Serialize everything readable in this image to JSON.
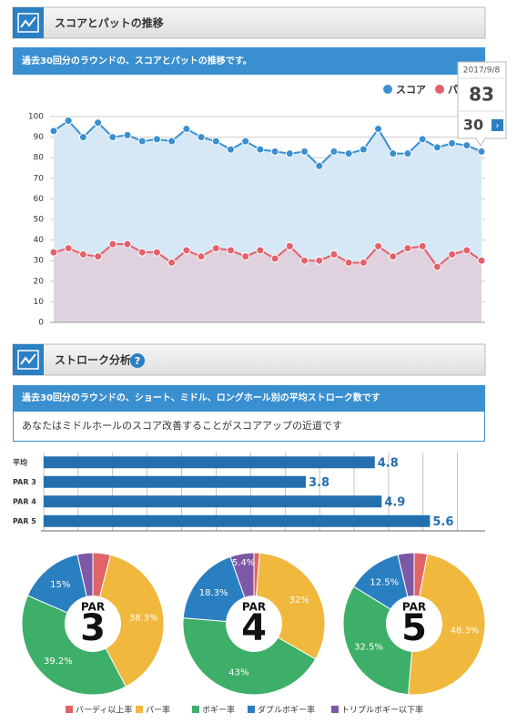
{
  "sections": [
    {
      "title": "スコアとパットの推移",
      "description": "過去30回分のラウンドの、スコアとパットの推移です。"
    },
    {
      "title": "ストローク分析",
      "description": "過去30回分のラウンドの、ショート、ミドル、ロングホール別の平均ストローク数です",
      "message": "あなたはミドルホールのスコア改善することがスコアアップの近道です"
    }
  ],
  "chart_data": [
    {
      "type": "line",
      "ylim": [
        0,
        100
      ],
      "yticks": [
        0,
        10,
        20,
        30,
        40,
        50,
        60,
        70,
        80,
        90,
        100
      ],
      "grid": true,
      "legend": "top-right",
      "series": [
        {
          "name": "スコア",
          "color": "#3a8fd0",
          "fill": "#d6e8f6",
          "values": [
            93,
            98,
            90,
            97,
            90,
            91,
            88,
            89,
            88,
            94,
            90,
            88,
            84,
            88,
            84,
            83,
            82,
            83,
            76,
            83,
            82,
            84,
            94,
            82,
            82,
            89,
            85,
            87,
            86,
            83
          ]
        },
        {
          "name": "パット",
          "color": "#e5606a",
          "fill": "#dfd2de",
          "values": [
            34,
            36,
            33,
            32,
            38,
            38,
            34,
            34,
            29,
            35,
            32,
            36,
            35,
            32,
            35,
            31,
            37,
            30,
            30,
            33,
            29,
            29,
            37,
            32,
            36,
            37,
            27,
            33,
            35,
            30
          ]
        }
      ],
      "tooltip": {
        "date": "2017/9/8",
        "values": [
          83,
          30
        ]
      }
    },
    {
      "type": "hbar",
      "categories": [
        "平均",
        "PAR 3",
        "PAR 4",
        "PAR 5"
      ],
      "values": [
        4.8,
        3.8,
        4.9,
        5.6
      ],
      "color": "#2470ae",
      "xlim": [
        0,
        6.4
      ],
      "xticks": [
        0,
        0.5,
        1,
        1.5,
        2,
        2.5,
        3,
        3.5,
        4,
        4.5,
        5,
        5.5,
        6
      ],
      "grid": true
    },
    {
      "type": "pie",
      "title": "PAR",
      "par": 3,
      "categories": [
        "バーディ以上率",
        "パー率",
        "ボギー率",
        "ダブルボギー率",
        "トリプルボギー以下率"
      ],
      "colors": [
        "#e06466",
        "#f0b83c",
        "#3daf68",
        "#2a7fc1",
        "#7c58a6"
      ],
      "values": [
        4,
        38.3,
        39.2,
        15,
        3.5
      ],
      "value_labels": [
        null,
        "38.3%",
        "39.2%",
        "15%",
        null
      ]
    },
    {
      "type": "pie",
      "title": "PAR",
      "par": 4,
      "categories": [
        "バーディ以上率",
        "パー率",
        "ボギー率",
        "ダブルボギー率",
        "トリプルボギー以下率"
      ],
      "colors": [
        "#e06466",
        "#f0b83c",
        "#3daf68",
        "#2a7fc1",
        "#7c58a6"
      ],
      "values": [
        1.3,
        32,
        43,
        18.3,
        5.4
      ],
      "value_labels": [
        null,
        "32%",
        "43%",
        "18.3%",
        "5.4%"
      ]
    },
    {
      "type": "pie",
      "title": "PAR",
      "par": 5,
      "categories": [
        "バーディ以上率",
        "パー率",
        "ボギー率",
        "ダブルボギー率",
        "トリプルボギー以下率"
      ],
      "colors": [
        "#e06466",
        "#f0b83c",
        "#3daf68",
        "#2a7fc1",
        "#7c58a6"
      ],
      "values": [
        3,
        48.3,
        32.5,
        12.5,
        3.7
      ],
      "value_labels": [
        null,
        "48.3%",
        "32.5%",
        "12.5%",
        null
      ]
    }
  ]
}
